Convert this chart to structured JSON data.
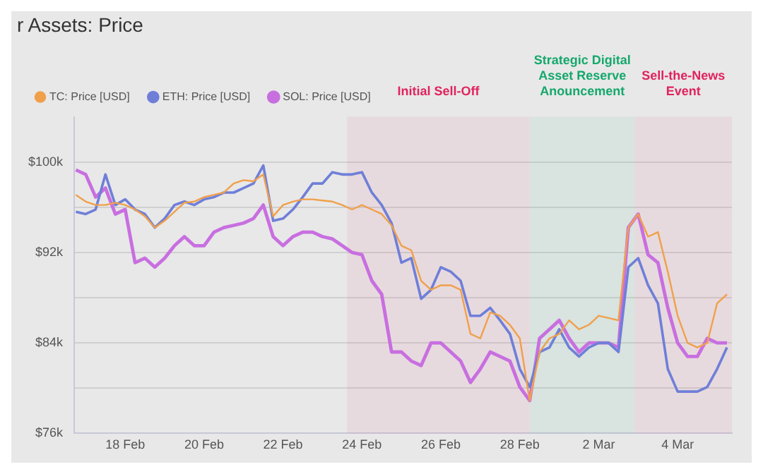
{
  "chart_data": {
    "type": "line",
    "title": "r Assets: Price",
    "x": [
      "--02-16T18:00",
      "--02-17T00:00",
      "--02-17T06:00",
      "--02-17T12:00",
      "--02-17T18:00",
      "--02-18T00:00",
      "--02-18T06:00",
      "--02-18T12:00",
      "--02-18T18:00",
      "--02-19T00:00",
      "--02-19T06:00",
      "--02-19T12:00",
      "--02-19T18:00",
      "--02-20T00:00",
      "--02-20T06:00",
      "--02-20T12:00",
      "--02-20T18:00",
      "--02-21T00:00",
      "--02-21T06:00",
      "--02-21T12:00",
      "--02-21T18:00",
      "--02-22T00:00",
      "--02-22T06:00",
      "--02-22T12:00",
      "--02-22T18:00",
      "--02-23T00:00",
      "--02-23T06:00",
      "--02-23T12:00",
      "--02-23T18:00",
      "--02-24T00:00",
      "--02-24T06:00",
      "--02-24T12:00",
      "--02-24T18:00",
      "--02-25T00:00",
      "--02-25T06:00",
      "--02-25T12:00",
      "--02-25T18:00",
      "--02-26T00:00",
      "--02-26T06:00",
      "--02-26T12:00",
      "--02-26T18:00",
      "--02-27T00:00",
      "--02-27T06:00",
      "--02-27T12:00",
      "--02-27T18:00",
      "--02-28T00:00",
      "--02-28T06:00",
      "--02-28T12:00",
      "--02-28T18:00",
      "--03-01T00:00",
      "--03-01T06:00",
      "--03-01T12:00",
      "--03-01T18:00",
      "--03-02T00:00",
      "--03-02T06:00",
      "--03-02T12:00",
      "--03-02T18:00",
      "--03-03T00:00",
      "--03-03T06:00",
      "--03-03T12:00",
      "--03-03T18:00",
      "--03-04T00:00",
      "--03-04T06:00",
      "--03-04T12:00",
      "--03-04T18:00",
      "--03-05T00:00",
      "--03-05T06:00"
    ],
    "series": [
      {
        "name": "TC: Price [USD]",
        "color": "#f0a04b",
        "values": [
          97100,
          96500,
          96200,
          96200,
          96400,
          96200,
          95800,
          95200,
          94200,
          94800,
          95600,
          96400,
          96500,
          96900,
          97100,
          97300,
          98100,
          98400,
          98300,
          98900,
          95200,
          96200,
          96500,
          96700,
          96700,
          96600,
          96500,
          96200,
          95800,
          96200,
          95800,
          95400,
          94400,
          92600,
          92200,
          89500,
          88700,
          89100,
          89100,
          88700,
          84800,
          84400,
          86700,
          86400,
          85600,
          84400,
          78900,
          83200,
          84400,
          84800,
          86000,
          85200,
          85600,
          86400,
          86200,
          86000,
          94200,
          95400,
          93400,
          93800,
          90300,
          86400,
          84000,
          83600,
          84000,
          87500,
          88300
        ]
      },
      {
        "name": "ETH: Price [USD]",
        "color": "#6f7fd8",
        "values": [
          95600,
          95400,
          95800,
          98900,
          96200,
          96700,
          95800,
          95400,
          94200,
          95000,
          96200,
          96500,
          96200,
          96700,
          96900,
          97300,
          97300,
          97700,
          98100,
          99700,
          94800,
          95000,
          95800,
          96900,
          98100,
          98100,
          99100,
          98900,
          98900,
          99100,
          97300,
          96200,
          94600,
          91100,
          91500,
          87900,
          88700,
          90700,
          90300,
          89500,
          86400,
          86400,
          87100,
          86000,
          84800,
          81700,
          80100,
          83200,
          83600,
          85200,
          83600,
          82800,
          83600,
          84000,
          84000,
          83200,
          90700,
          91500,
          89100,
          87500,
          81700,
          79700,
          79700,
          79700,
          80100,
          81700,
          83600
        ]
      },
      {
        "name": "SOL: Price [USD]",
        "color": "#c86fe0",
        "values": [
          99300,
          98900,
          96900,
          97700,
          95400,
          95800,
          91100,
          91500,
          90700,
          91500,
          92600,
          93400,
          92600,
          92600,
          93800,
          94200,
          94400,
          94600,
          95000,
          96200,
          93400,
          92600,
          93400,
          93800,
          93800,
          93400,
          93200,
          92600,
          92000,
          91800,
          89500,
          88300,
          83200,
          83200,
          82400,
          82000,
          84000,
          84000,
          83200,
          82400,
          80500,
          81700,
          83200,
          82800,
          82400,
          80100,
          78900,
          84400,
          85200,
          86000,
          84400,
          83200,
          84000,
          84000,
          84000,
          83600,
          94200,
          95400,
          91800,
          91100,
          87100,
          84000,
          82800,
          82800,
          84400,
          84000,
          84000
        ]
      }
    ],
    "xlim": [
      "--02-16T17:00",
      "--03-05T09:00"
    ],
    "xticks": [
      {
        "value": "--02-18",
        "label": "18 Feb"
      },
      {
        "value": "--02-20",
        "label": "20 Feb"
      },
      {
        "value": "--02-22",
        "label": "22 Feb"
      },
      {
        "value": "--02-24",
        "label": "24 Feb"
      },
      {
        "value": "--02-26",
        "label": "26 Feb"
      },
      {
        "value": "--02-28",
        "label": "28 Feb"
      },
      {
        "value": "--03-02",
        "label": "2 Mar"
      },
      {
        "value": "--03-04",
        "label": "4 Mar"
      }
    ],
    "ylim": [
      76000,
      104000
    ],
    "yticks": [
      {
        "value": 76000,
        "label": "$76k"
      },
      {
        "value": 80000,
        "label": null
      },
      {
        "value": 84000,
        "label": "$84k"
      },
      {
        "value": 88000,
        "label": null
      },
      {
        "value": 92000,
        "label": "$92k"
      },
      {
        "value": 96000,
        "label": null
      },
      {
        "value": 100000,
        "label": "$100k"
      }
    ],
    "bands": [
      {
        "axis": "x",
        "from": "--02-23T15:00",
        "to": "--02-28T06:00",
        "label": "Initial Sell-Off",
        "color": "#e0245e"
      },
      {
        "axis": "x",
        "from": "--02-28T06:00",
        "to": "--03-02T22:00",
        "label": "Strategic Digital Asset Reserve Anouncement",
        "color": "#16a86c"
      },
      {
        "axis": "x",
        "from": "--03-02T22:00",
        "to": "--03-05T09:00",
        "label": "Sell-the-News Event",
        "color": "#e0245e"
      }
    ],
    "grid": "y",
    "legend": "top left",
    "marker": "none",
    "line_style": "solid"
  }
}
